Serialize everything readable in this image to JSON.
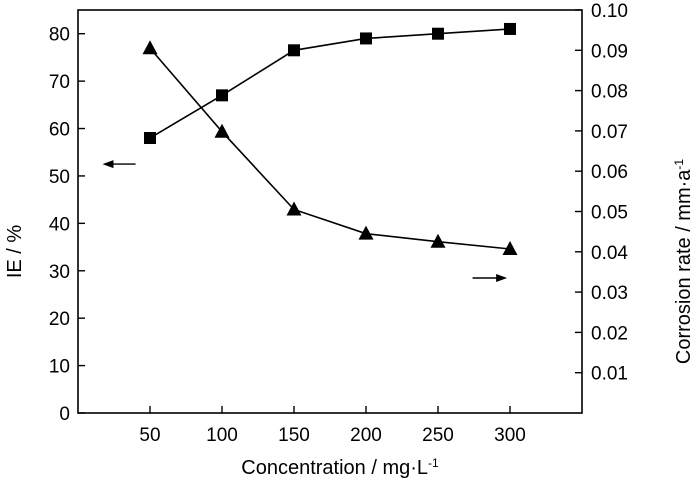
{
  "chart_data": {
    "type": "line",
    "x": [
      50,
      100,
      150,
      200,
      250,
      300
    ],
    "xlim": [
      0,
      350
    ],
    "x_ticks": [
      "50",
      "100",
      "150",
      "200",
      "250",
      "300"
    ],
    "xlabel": {
      "main": "Concentration / mg·L",
      "sup": "-1"
    },
    "y_left": {
      "label": "IE / %",
      "ylim": [
        0,
        85
      ],
      "ticks": [
        "0",
        "10",
        "20",
        "30",
        "40",
        "50",
        "60",
        "70",
        "80"
      ]
    },
    "y_right": {
      "label": {
        "main": "Corrosion rate / mm·a",
        "sup": "-1"
      },
      "ylim": [
        0,
        0.1
      ],
      "ticks": [
        "0.01",
        "0.02",
        "0.03",
        "0.04",
        "0.05",
        "0.06",
        "0.07",
        "0.08",
        "0.09",
        "0.10"
      ]
    },
    "series": [
      {
        "axis": "left",
        "marker": "square",
        "values": [
          58,
          67,
          76.5,
          79,
          80,
          81
        ]
      },
      {
        "axis": "right",
        "marker": "triangle",
        "values": [
          0.0905,
          0.0698,
          0.0505,
          0.0445,
          0.0425,
          0.0407
        ]
      }
    ],
    "annotations": [
      {
        "type": "arrow",
        "direction": "left",
        "refers_to": "left-axis-series"
      },
      {
        "type": "arrow",
        "direction": "right",
        "refers_to": "right-axis-series"
      }
    ],
    "grid": false,
    "colors": {
      "line": "#000000",
      "marker": "#000000",
      "axis": "#000000"
    }
  }
}
